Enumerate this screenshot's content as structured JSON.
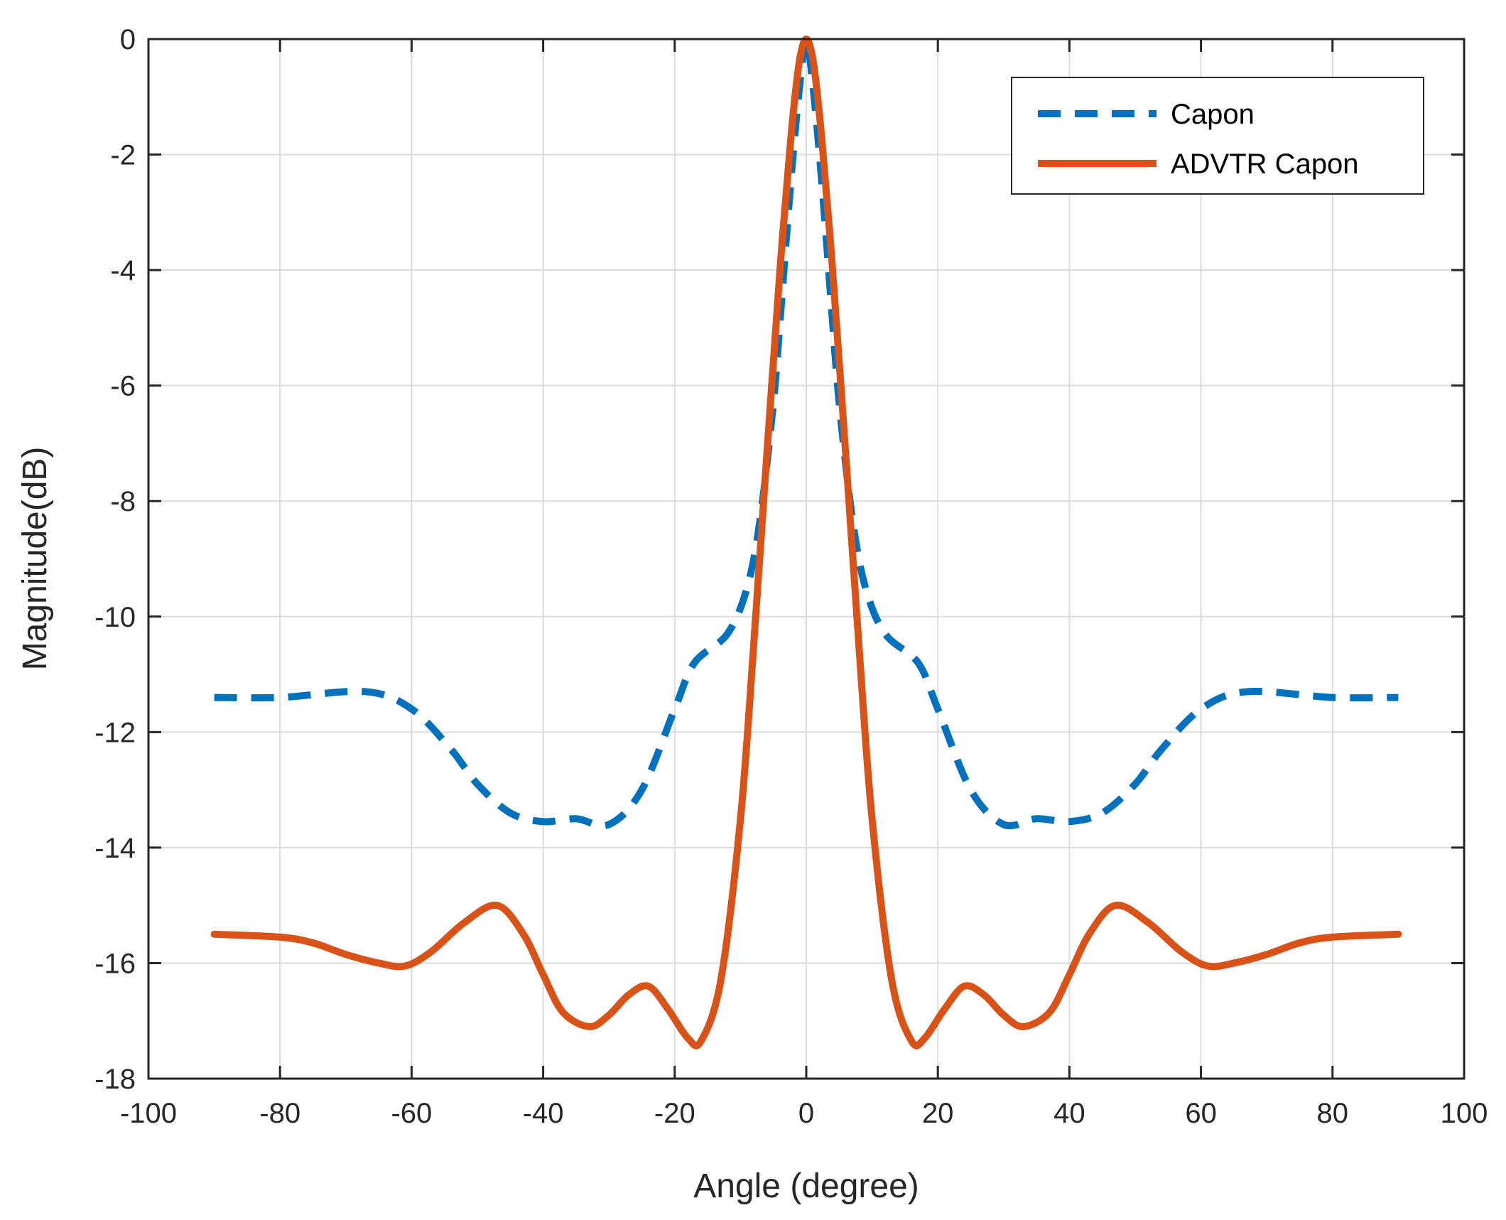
{
  "chart_data": {
    "type": "line",
    "title": "",
    "xlabel": "Angle (degree)",
    "ylabel": "Magnitude(dB)",
    "xlim": [
      -100,
      100
    ],
    "ylim": [
      -18,
      0
    ],
    "xticks": [
      -100,
      -80,
      -60,
      -40,
      -20,
      0,
      20,
      40,
      60,
      80,
      100
    ],
    "yticks": [
      0,
      -2,
      -4,
      -6,
      -8,
      -10,
      -12,
      -14,
      -16,
      -18
    ],
    "grid": true,
    "legend_position": "top-right",
    "series": [
      {
        "name": "Capon",
        "style": "dashed",
        "color": "#0072BD",
        "x": [
          -90,
          -80,
          -67,
          -60,
          -54,
          -50,
          -45,
          -40,
          -35,
          -30,
          -25,
          -20,
          -17,
          -12,
          -9,
          -7,
          -5,
          -4,
          -3,
          -2,
          -1,
          0,
          1,
          2,
          3,
          4,
          5,
          7,
          9,
          12,
          17,
          20,
          25,
          30,
          35,
          40,
          45,
          50,
          54,
          60,
          67,
          80,
          90
        ],
        "y": [
          -11.4,
          -11.4,
          -11.3,
          -11.6,
          -12.3,
          -12.9,
          -13.4,
          -13.55,
          -13.5,
          -13.6,
          -13.0,
          -11.6,
          -10.8,
          -10.3,
          -9.5,
          -8.3,
          -6.3,
          -4.9,
          -3.4,
          -2.0,
          -0.8,
          0.0,
          -0.8,
          -2.0,
          -3.4,
          -4.9,
          -6.3,
          -8.3,
          -9.5,
          -10.3,
          -10.8,
          -11.6,
          -13.0,
          -13.6,
          -13.5,
          -13.55,
          -13.4,
          -12.9,
          -12.3,
          -11.6,
          -11.3,
          -11.4,
          -11.4
        ]
      },
      {
        "name": "ADVTR Capon",
        "style": "solid",
        "color": "#D95319",
        "x": [
          -90,
          -80,
          -75,
          -70,
          -65,
          -61,
          -57,
          -52,
          -47,
          -43,
          -40,
          -37,
          -33,
          -30,
          -27,
          -24,
          -21,
          -18,
          -16,
          -13,
          -10,
          -8,
          -6,
          -4,
          -3,
          -2,
          -1,
          0,
          1,
          2,
          3,
          4,
          6,
          8,
          10,
          13,
          16,
          18,
          21,
          24,
          27,
          30,
          33,
          37,
          40,
          43,
          47,
          52,
          57,
          61,
          65,
          70,
          75,
          80,
          90
        ],
        "y": [
          -15.5,
          -15.55,
          -15.65,
          -15.85,
          -16.0,
          -16.05,
          -15.8,
          -15.3,
          -15.0,
          -15.5,
          -16.2,
          -16.85,
          -17.1,
          -16.9,
          -16.55,
          -16.4,
          -16.8,
          -17.3,
          -17.35,
          -16.3,
          -13.5,
          -10.5,
          -7.2,
          -4.0,
          -2.6,
          -1.3,
          -0.35,
          0.0,
          -0.35,
          -1.3,
          -2.6,
          -4.0,
          -7.2,
          -10.5,
          -13.5,
          -16.3,
          -17.35,
          -17.3,
          -16.8,
          -16.4,
          -16.55,
          -16.9,
          -17.1,
          -16.85,
          -16.2,
          -15.5,
          -15.0,
          -15.3,
          -15.8,
          -16.05,
          -16.0,
          -15.85,
          -15.65,
          -15.55,
          -15.5
        ]
      }
    ]
  }
}
